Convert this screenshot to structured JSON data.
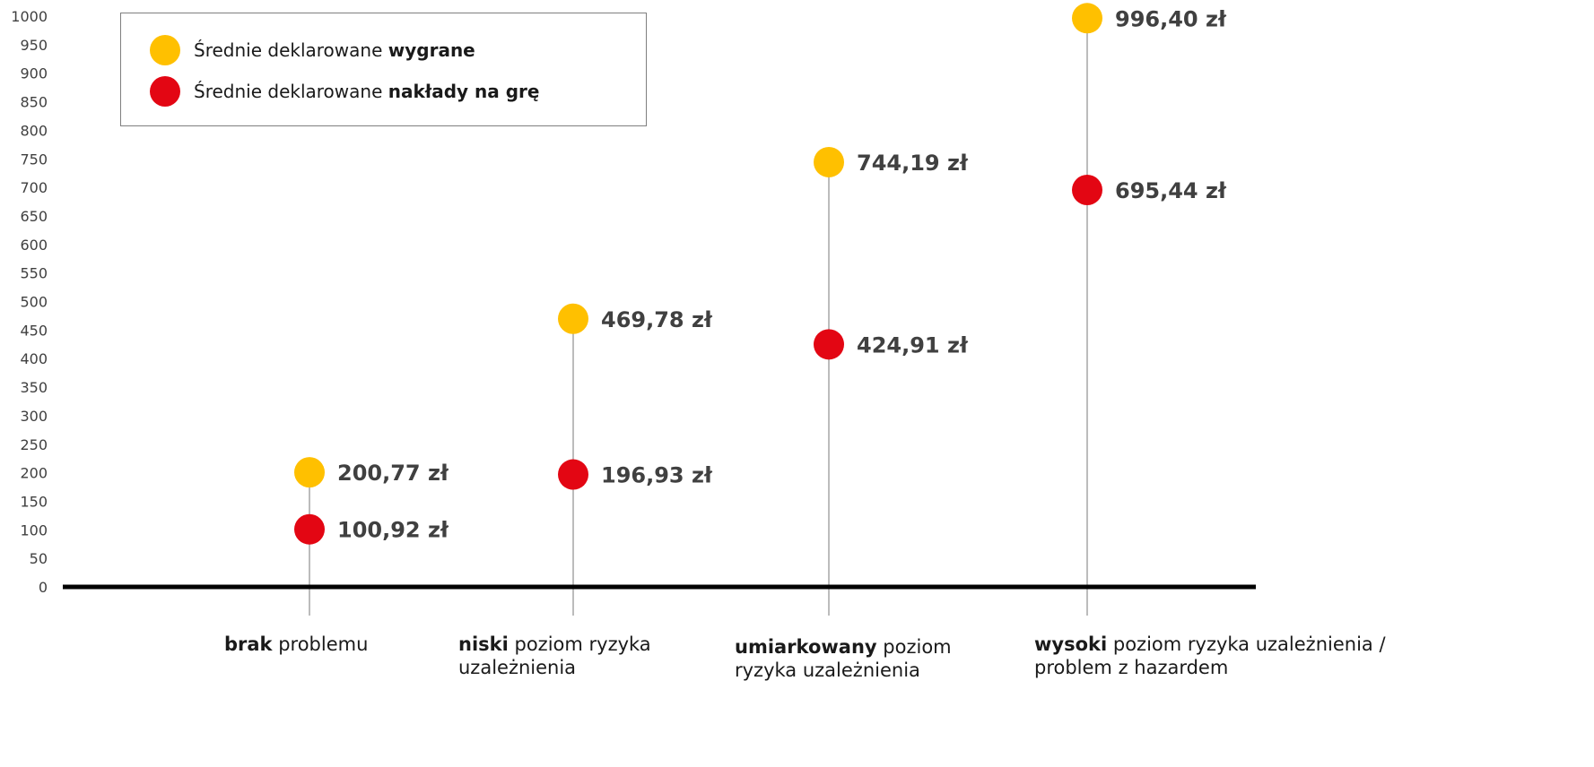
{
  "chart_data": {
    "type": "dot",
    "y_ticks": [
      "0",
      "50",
      "100",
      "150",
      "200",
      "250",
      "300",
      "350",
      "400",
      "450",
      "500",
      "550",
      "600",
      "650",
      "700",
      "750",
      "800",
      "850",
      "900",
      "950",
      "1000"
    ],
    "ylim": [
      0,
      1000
    ],
    "categories": [
      {
        "bold": "brak",
        "rest": " problemu"
      },
      {
        "bold": "niski",
        "rest": " poziom ryzyka uzależnienia"
      },
      {
        "bold": "umiarkowany",
        "rest": " poziom ryzyka uzależnienia"
      },
      {
        "bold": "wysoki",
        "rest": " poziom ryzyka uzależnienia / problem z  hazardem"
      }
    ],
    "series": [
      {
        "name_plain": "Średnie deklarowane ",
        "name_bold": "wygrane",
        "color": "#FFC000",
        "values": [
          200.77,
          469.78,
          744.19,
          996.4
        ],
        "labels": [
          "200,77 zł",
          "469,78 zł",
          "744,19 zł",
          "996,40 zł"
        ]
      },
      {
        "name_plain": "Średnie deklarowane ",
        "name_bold": "nakłady na grę",
        "color": "#E30613",
        "values": [
          100.92,
          196.93,
          424.91,
          695.44
        ],
        "labels": [
          "100,92 zł",
          "196,93 zł",
          "424,91 zł",
          "695,44 zł"
        ]
      }
    ],
    "legend_position": "top-left",
    "grid": false
  }
}
